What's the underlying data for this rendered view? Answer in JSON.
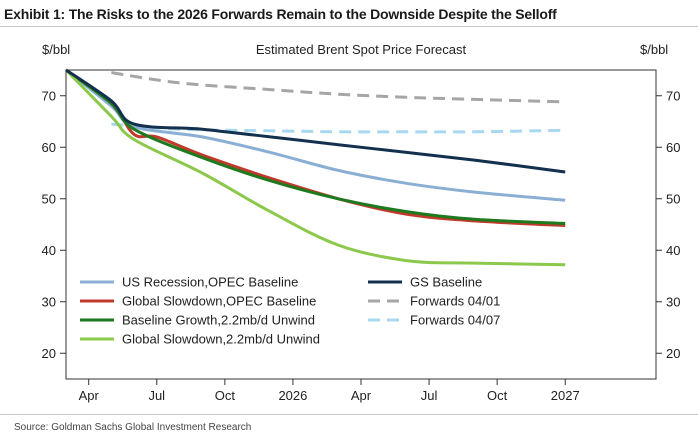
{
  "header": {
    "exhibit_title": "Exhibit 1: The Risks to the 2026 Forwards Remain to the Downside Despite the Selloff"
  },
  "footer": {
    "source": "Source: Goldman Sachs Global Investment Research"
  },
  "chart_data": {
    "type": "line",
    "title": "Estimated Brent Spot Price Forecast",
    "ylabel_left": "$/bbl",
    "ylabel_right": "$/bbl",
    "ylim": [
      15,
      75
    ],
    "yticks": [
      20,
      30,
      40,
      50,
      60,
      70
    ],
    "xlim": [
      0,
      26
    ],
    "x_axis_note": "months since mid-March 2025",
    "xticks": [
      {
        "x": 1,
        "label": "Apr"
      },
      {
        "x": 4,
        "label": "Jul"
      },
      {
        "x": 7,
        "label": "Oct"
      },
      {
        "x": 10,
        "label": "2026"
      },
      {
        "x": 13,
        "label": "Apr"
      },
      {
        "x": 16,
        "label": "Jul"
      },
      {
        "x": 19,
        "label": "Oct"
      },
      {
        "x": 22,
        "label": "2027"
      }
    ],
    "series": [
      {
        "name": "US Recession,OPEC Baseline",
        "color": "#8bafd4",
        "dash": "solid",
        "x": [
          0,
          2,
          3,
          6,
          9,
          12,
          15,
          18,
          22
        ],
        "values": [
          75.0,
          68.0,
          64.0,
          62.0,
          59.0,
          55.5,
          53.0,
          51.3,
          49.7
        ]
      },
      {
        "name": "Global Slowdown,OPEC Baseline",
        "color": "#c0392b",
        "dash": "solid",
        "x": [
          0,
          2,
          3,
          4,
          6,
          9,
          12,
          15,
          18,
          22
        ],
        "values": [
          75.0,
          68.5,
          62.5,
          62.0,
          58.5,
          54.0,
          50.0,
          47.0,
          45.7,
          44.8
        ]
      },
      {
        "name": "Baseline Growth,2.2mb/d Unwind",
        "color": "#1e7a1e",
        "dash": "solid",
        "x": [
          0,
          2,
          3,
          6,
          9,
          12,
          15,
          18,
          22
        ],
        "values": [
          75.0,
          68.5,
          63.5,
          58.0,
          53.5,
          50.0,
          47.5,
          46.0,
          45.2
        ]
      },
      {
        "name": "Global Slowdown,2.2mb/d Unwind",
        "color": "#8cc84b",
        "dash": "solid",
        "x": [
          0,
          2,
          3,
          6,
          9,
          12,
          15,
          18,
          22
        ],
        "values": [
          75.0,
          66.0,
          61.5,
          55.0,
          47.5,
          41.0,
          38.0,
          37.5,
          37.2
        ]
      },
      {
        "name": "GS Baseline",
        "color": "#13304f",
        "dash": "solid",
        "x": [
          0,
          2,
          3,
          6,
          9,
          12,
          15,
          18,
          22
        ],
        "values": [
          75.0,
          69.0,
          64.5,
          63.5,
          62.0,
          60.5,
          59.0,
          57.5,
          55.2
        ]
      },
      {
        "name": "Forwards 04/01",
        "color": "#a6a6a6",
        "dash": "dashed",
        "x": [
          2,
          5,
          9,
          12,
          15,
          18,
          22
        ],
        "values": [
          74.5,
          72.5,
          71.2,
          70.3,
          69.7,
          69.3,
          68.8
        ]
      },
      {
        "name": "Forwards 04/07",
        "color": "#a8d8f0",
        "dash": "dashed",
        "x": [
          2,
          5,
          9,
          12,
          15,
          18,
          22
        ],
        "values": [
          64.5,
          63.5,
          63.2,
          63.0,
          63.0,
          63.0,
          63.3
        ]
      }
    ],
    "legend": {
      "placement": "bottom-left",
      "columns": [
        [
          "US Recession,OPEC Baseline",
          "Global Slowdown,OPEC Baseline",
          "Baseline Growth,2.2mb/d Unwind",
          "Global Slowdown,2.2mb/d Unwind"
        ],
        [
          "GS Baseline",
          "Forwards 04/01",
          "Forwards 04/07"
        ]
      ]
    }
  }
}
